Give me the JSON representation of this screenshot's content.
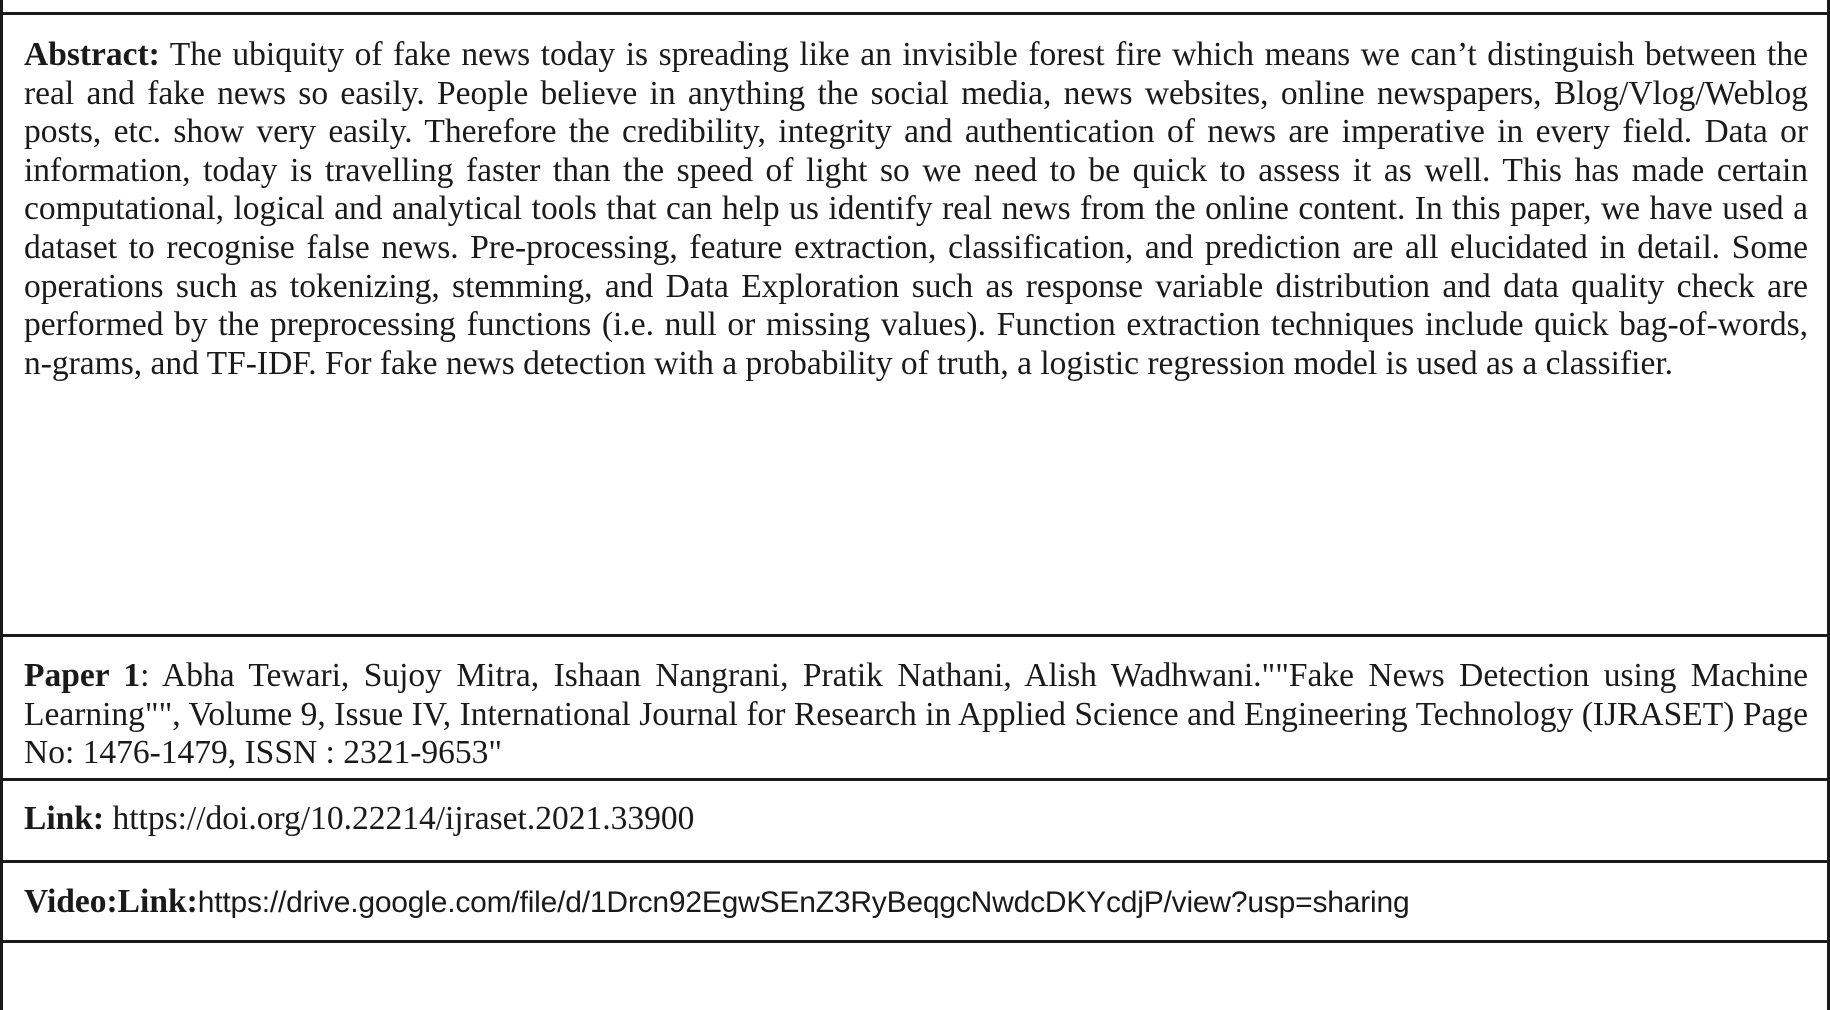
{
  "abstract": {
    "label": "Abstract:",
    "text": "The ubiquity of fake news today is spreading like an invisible forest fire which means we can’t distinguish between the real and fake news so easily. People believe in anything the social media, news websites, online newspapers, Blog/Vlog/Weblog posts, etc. show very easily. Therefore the credibility, integrity and authentication of news are imperative in every field. Data or information, today is travelling faster than the speed of light so we need to be quick to assess it as well. This has made certain computational, logical and analytical tools that can help us identify real news from the online content. In this paper, we have used a dataset to recognise false news. Pre-processing, feature extraction, classification, and prediction are all elucidated in detail. Some operations such as tokenizing, stemming, and Data Exploration such as response variable distribution and data quality check are performed by the preprocessing functions (i.e. null or missing values). Function extraction techniques include quick bag-of-words, n-grams, and TF-IDF. For fake news detection with a probability of truth, a logistic regression model is used as a classifier."
  },
  "paper": {
    "label": "Paper 1",
    "text": ": Abha Tewari, Sujoy Mitra, Ishaan Nangrani, Pratik Nathani, Alish Wadhwani.\"\"Fake News Detection using Machine Learning\"\", Volume 9, Issue IV, International Journal for Research in Applied Science and Engineering Technology (IJRASET) Page No: 1476-1479, ISSN : 2321-9653\""
  },
  "link": {
    "label": "Link:",
    "url": "https://doi.org/10.22214/ijraset.2021.33900"
  },
  "video": {
    "label": "Video:Link:",
    "url": "https://drive.google.com/file/d/1Drcn92EgwSEnZ3RyBeqgcNwdcDKYcdjP/view?usp=sharing"
  }
}
